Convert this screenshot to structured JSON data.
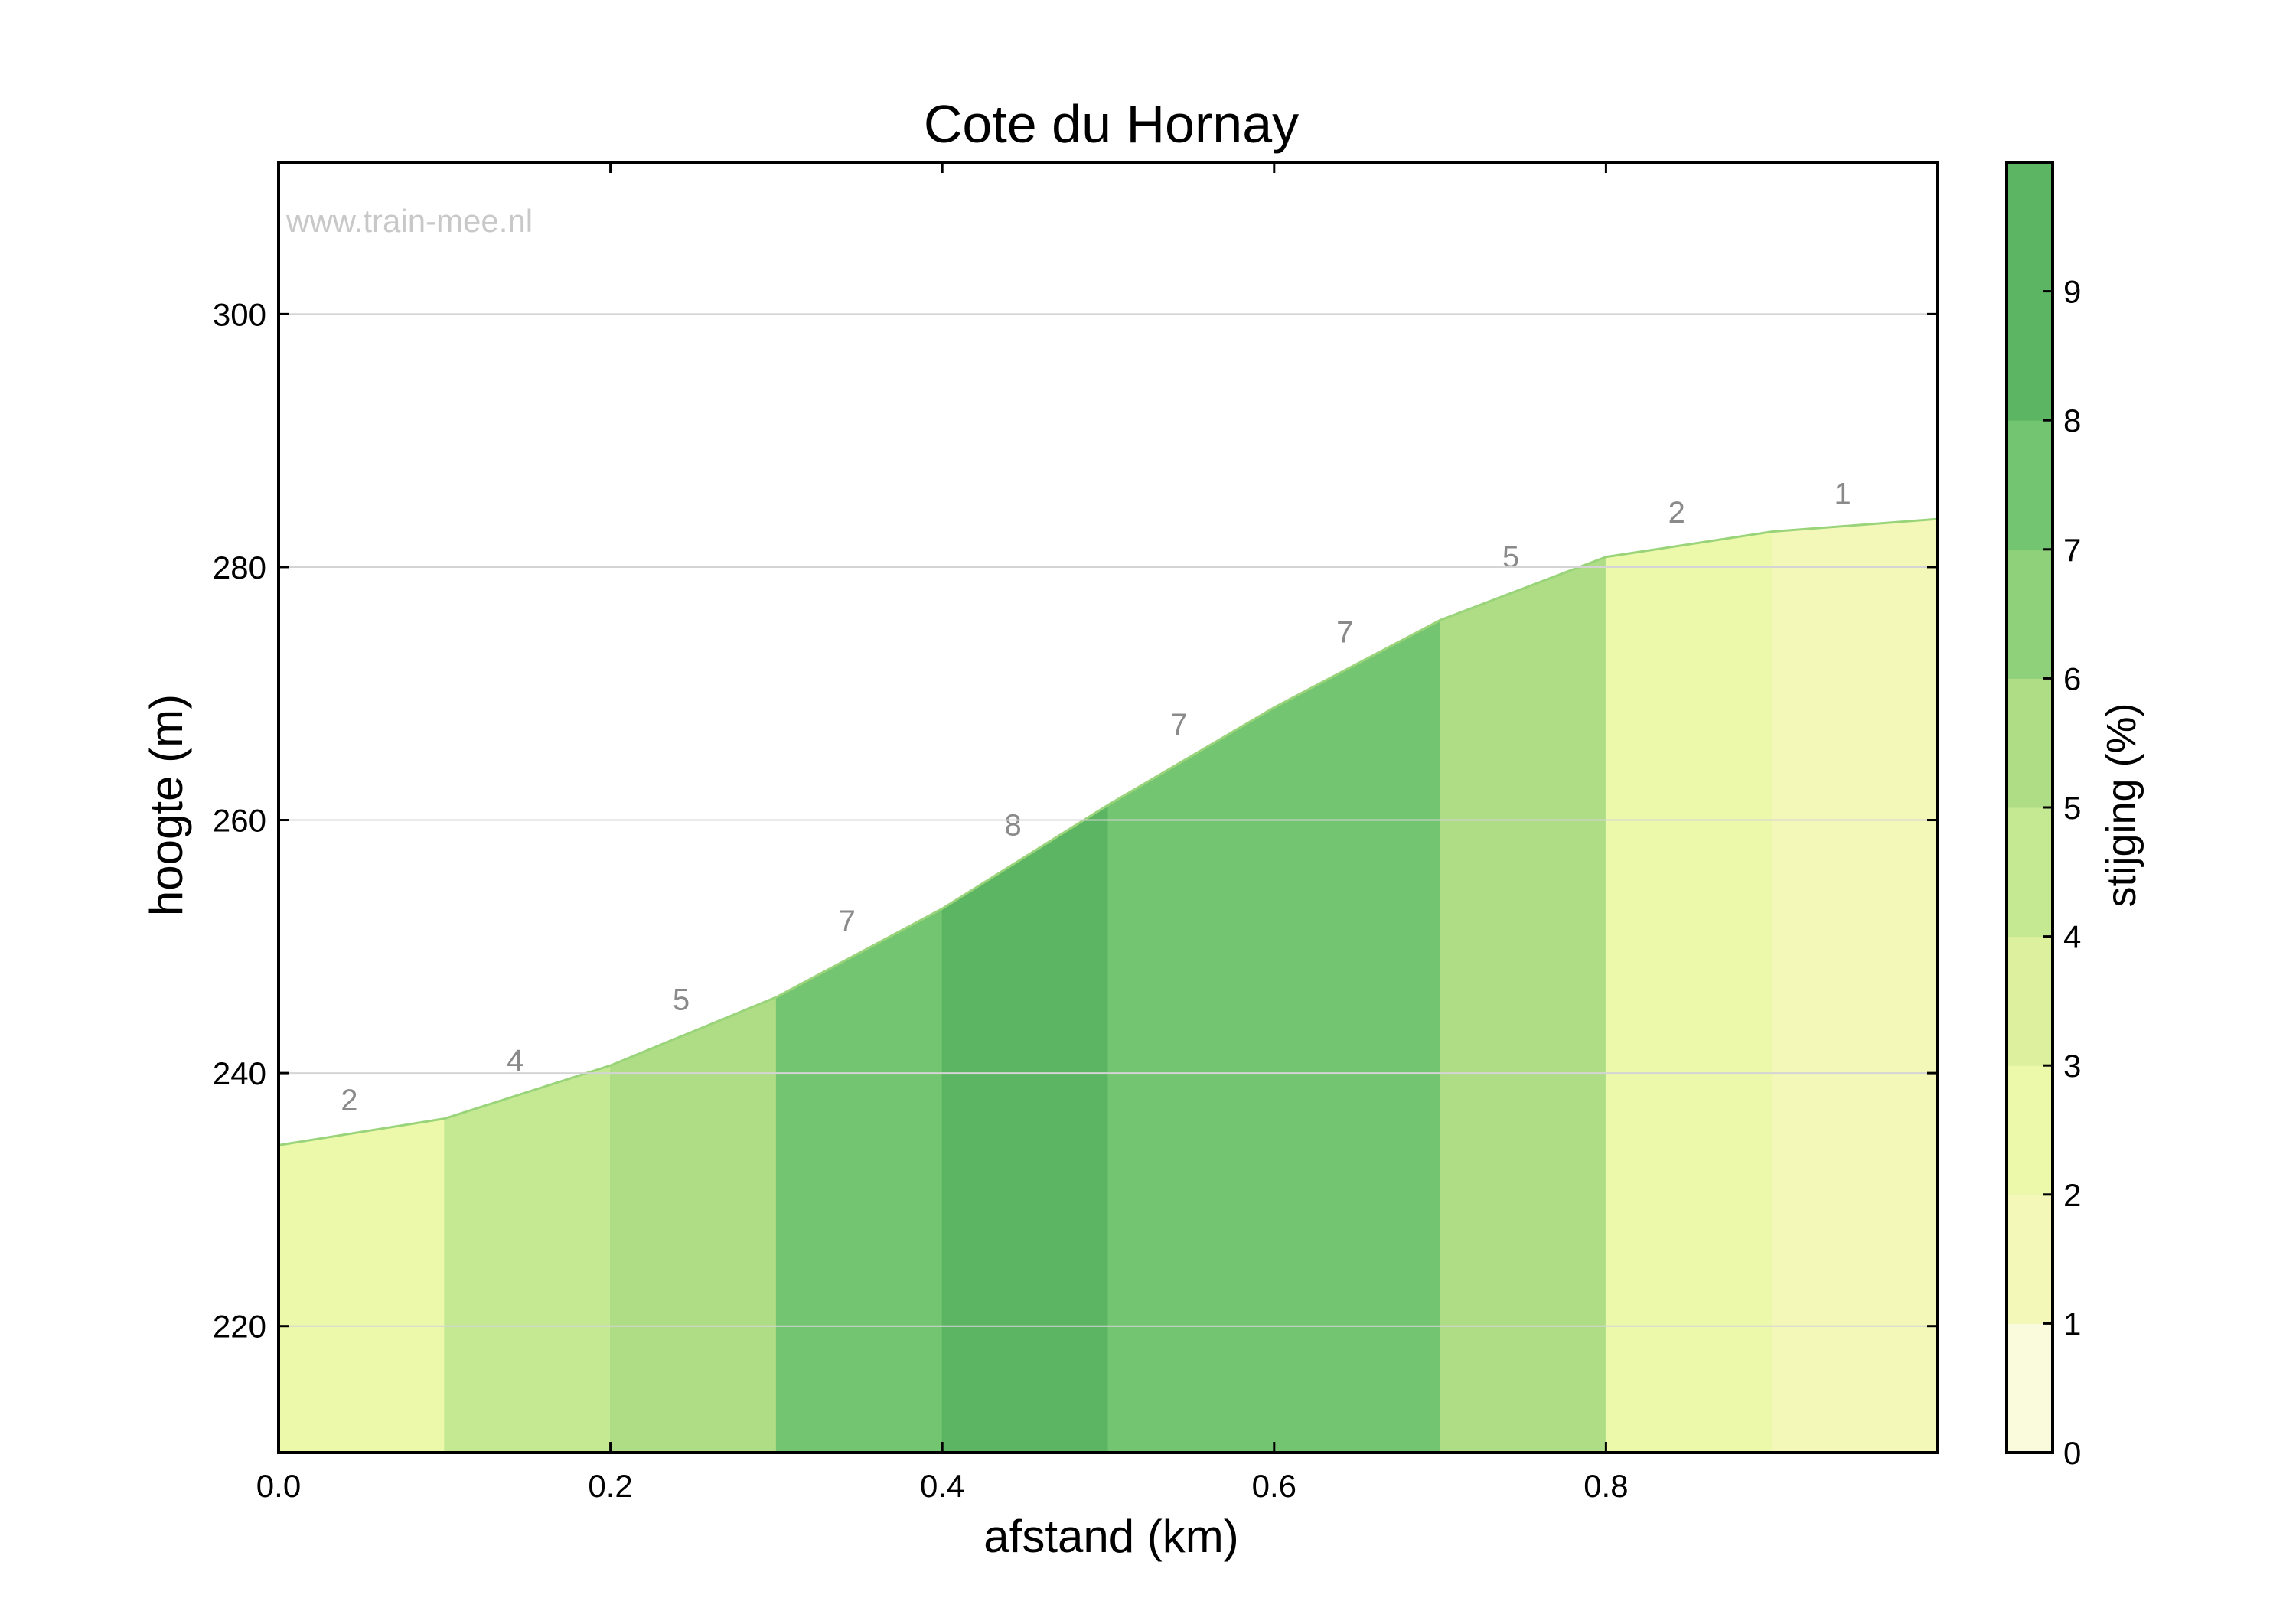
{
  "chart_data": {
    "type": "area",
    "title": "Cote du Hornay",
    "xlabel": "afstand (km)",
    "ylabel": "hoogte (m)",
    "watermark": "www.train-mee.nl",
    "xlim": [
      0,
      1.0
    ],
    "ylim": [
      210,
      312
    ],
    "xticks": [
      "0.0",
      "0.2",
      "0.4",
      "0.6",
      "0.8"
    ],
    "xtick_values": [
      0,
      0.2,
      0.4,
      0.6,
      0.8
    ],
    "yticks": [
      "220",
      "240",
      "260",
      "280",
      "300"
    ],
    "ytick_values": [
      220,
      240,
      260,
      280,
      300
    ],
    "grid": "horizontal",
    "profile": {
      "x": [
        0,
        0.1,
        0.2,
        0.3,
        0.4,
        0.5,
        0.6,
        0.7,
        0.8,
        0.9,
        1.0
      ],
      "elevation": [
        234.3,
        236.4,
        240.6,
        246.0,
        253.0,
        261.2,
        268.9,
        275.8,
        280.8,
        282.8,
        283.8
      ]
    },
    "segments": [
      {
        "x0": 0.0,
        "x1": 0.1,
        "gradient": 2,
        "label": "2"
      },
      {
        "x0": 0.1,
        "x1": 0.2,
        "gradient": 4,
        "label": "4"
      },
      {
        "x0": 0.2,
        "x1": 0.3,
        "gradient": 5,
        "label": "5"
      },
      {
        "x0": 0.3,
        "x1": 0.4,
        "gradient": 7,
        "label": "7"
      },
      {
        "x0": 0.4,
        "x1": 0.5,
        "gradient": 8,
        "label": "8"
      },
      {
        "x0": 0.5,
        "x1": 0.6,
        "gradient": 7,
        "label": "7"
      },
      {
        "x0": 0.6,
        "x1": 0.7,
        "gradient": 7,
        "label": "7"
      },
      {
        "x0": 0.7,
        "x1": 0.8,
        "gradient": 5,
        "label": "5"
      },
      {
        "x0": 0.8,
        "x1": 0.9,
        "gradient": 2,
        "label": "2"
      },
      {
        "x0": 0.9,
        "x1": 1.0,
        "gradient": 1,
        "label": "1"
      }
    ],
    "colorbar": {
      "label": "stijging (%)",
      "ticks": [
        "0",
        "1",
        "2",
        "3",
        "4",
        "5",
        "6",
        "7",
        "8",
        "9"
      ],
      "colors": [
        "#fafadc",
        "#f3f8b9",
        "#ecf8aa",
        "#dcf09e",
        "#c5e993",
        "#aedd86",
        "#8fd07b",
        "#74c571",
        "#5cb562",
        "#5cb562"
      ]
    },
    "label_color": "#8a8a8a",
    "outline_color": "#9ad47a"
  }
}
